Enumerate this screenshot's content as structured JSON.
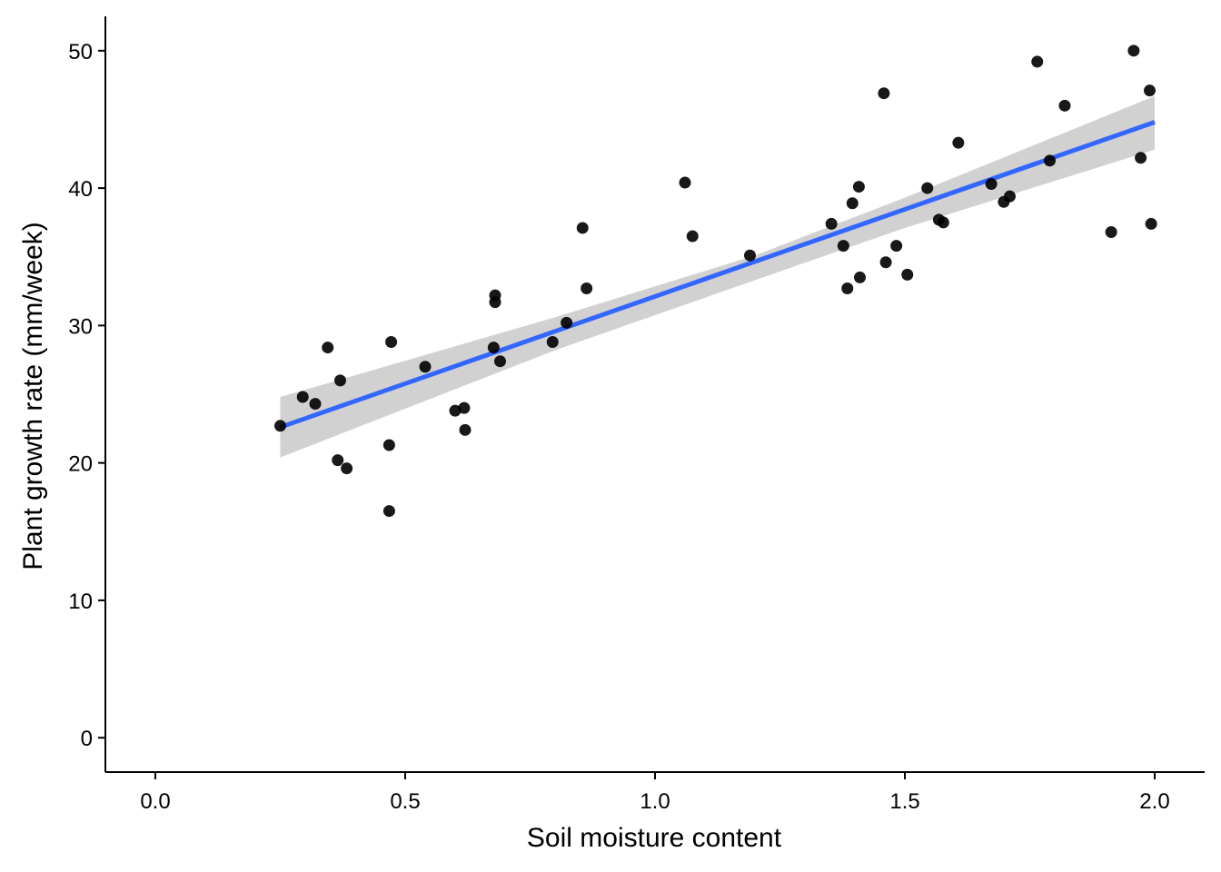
{
  "chart_data": {
    "type": "scatter",
    "title": "",
    "xlabel": "Soil moisture content",
    "ylabel": "Plant growth rate (mm/week)",
    "xlim": [
      -0.1,
      2.1
    ],
    "ylim": [
      -2.5,
      52.5
    ],
    "x_ticks": [
      0.0,
      0.5,
      1.0,
      1.5,
      2.0
    ],
    "x_tick_labels": [
      "0.0",
      "0.5",
      "1.0",
      "1.5",
      "2.0"
    ],
    "y_ticks": [
      0,
      10,
      20,
      30,
      40,
      50
    ],
    "y_tick_labels": [
      "0",
      "10",
      "20",
      "30",
      "40",
      "50"
    ],
    "grid": false,
    "legend": "none",
    "points": [
      {
        "x": 0.25,
        "y": 22.7
      },
      {
        "x": 0.295,
        "y": 24.8
      },
      {
        "x": 0.32,
        "y": 24.3
      },
      {
        "x": 0.345,
        "y": 28.4
      },
      {
        "x": 0.365,
        "y": 20.2
      },
      {
        "x": 0.37,
        "y": 26.0
      },
      {
        "x": 0.383,
        "y": 19.6
      },
      {
        "x": 0.468,
        "y": 21.3
      },
      {
        "x": 0.468,
        "y": 16.5
      },
      {
        "x": 0.472,
        "y": 28.8
      },
      {
        "x": 0.54,
        "y": 27.0
      },
      {
        "x": 0.6,
        "y": 23.8
      },
      {
        "x": 0.618,
        "y": 24.0
      },
      {
        "x": 0.62,
        "y": 22.4
      },
      {
        "x": 0.677,
        "y": 28.4
      },
      {
        "x": 0.68,
        "y": 32.2
      },
      {
        "x": 0.68,
        "y": 31.7
      },
      {
        "x": 0.69,
        "y": 27.4
      },
      {
        "x": 0.795,
        "y": 28.8
      },
      {
        "x": 0.823,
        "y": 30.2
      },
      {
        "x": 0.855,
        "y": 37.1
      },
      {
        "x": 0.863,
        "y": 32.7
      },
      {
        "x": 1.06,
        "y": 40.4
      },
      {
        "x": 1.075,
        "y": 36.5
      },
      {
        "x": 1.19,
        "y": 35.1
      },
      {
        "x": 1.353,
        "y": 37.4
      },
      {
        "x": 1.377,
        "y": 35.8
      },
      {
        "x": 1.385,
        "y": 32.7
      },
      {
        "x": 1.395,
        "y": 38.9
      },
      {
        "x": 1.408,
        "y": 40.1
      },
      {
        "x": 1.41,
        "y": 33.5
      },
      {
        "x": 1.458,
        "y": 46.9
      },
      {
        "x": 1.462,
        "y": 34.6
      },
      {
        "x": 1.483,
        "y": 35.8
      },
      {
        "x": 1.505,
        "y": 33.7
      },
      {
        "x": 1.545,
        "y": 40.0
      },
      {
        "x": 1.568,
        "y": 37.7
      },
      {
        "x": 1.577,
        "y": 37.5
      },
      {
        "x": 1.607,
        "y": 43.3
      },
      {
        "x": 1.673,
        "y": 40.3
      },
      {
        "x": 1.698,
        "y": 39.0
      },
      {
        "x": 1.71,
        "y": 39.4
      },
      {
        "x": 1.765,
        "y": 49.2
      },
      {
        "x": 1.79,
        "y": 42.0
      },
      {
        "x": 1.82,
        "y": 46.0
      },
      {
        "x": 1.913,
        "y": 36.8
      },
      {
        "x": 1.958,
        "y": 50.0
      },
      {
        "x": 1.972,
        "y": 42.2
      },
      {
        "x": 1.99,
        "y": 47.1
      },
      {
        "x": 1.993,
        "y": 37.4
      }
    ],
    "fit_line": {
      "x": [
        0.25,
        2.0
      ],
      "y": [
        22.6,
        44.8
      ]
    },
    "confidence_band": {
      "x": [
        0.25,
        0.8,
        1.2,
        1.5,
        2.0
      ],
      "lower": [
        20.4,
        28.2,
        33.3,
        37.1,
        42.8
      ],
      "upper": [
        24.8,
        30.6,
        35.1,
        39.3,
        46.7
      ]
    },
    "colors": {
      "point": "#000000",
      "line": "#3366ff",
      "band": "#cccccc",
      "axis": "#000000"
    }
  }
}
